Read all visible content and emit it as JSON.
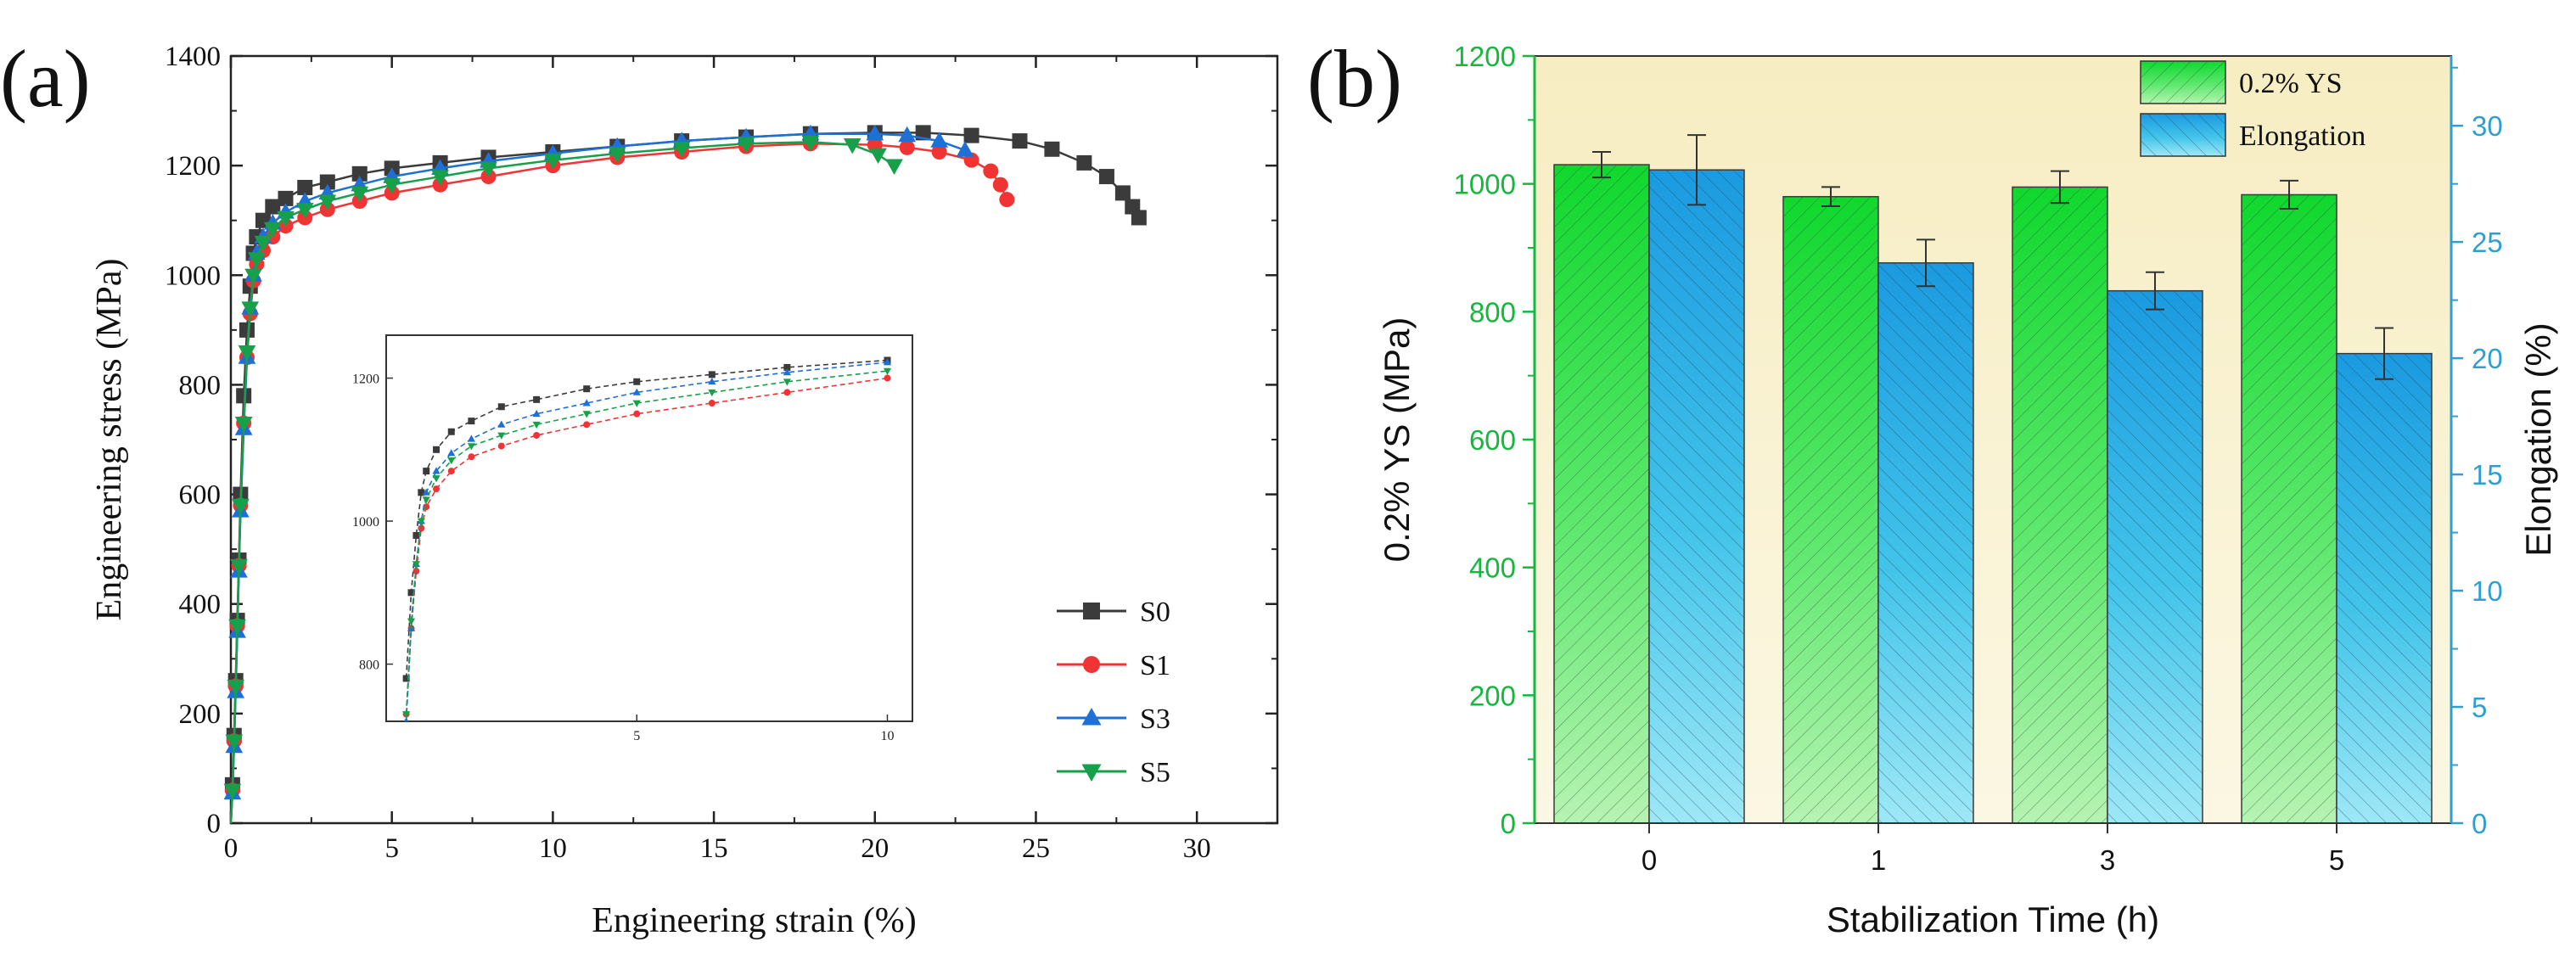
{
  "figure": {
    "panel_a_label": "(a)",
    "panel_b_label": "(b)"
  },
  "colors": {
    "S0": "#3b3b3b",
    "S1": "#f03434",
    "S3": "#1e6fd6",
    "S5": "#17a04a",
    "ys_axis": "#14b83c",
    "el_axis": "#2f9fd0",
    "background_b": "#f7efc6"
  },
  "chart_data": [
    {
      "id": "a",
      "type": "line",
      "title": "",
      "xlabel": "Engineering strain (%)",
      "ylabel": "Engineering stress (MPa)",
      "xlim": [
        0,
        32.5
      ],
      "ylim": [
        0,
        1400
      ],
      "xticks": [
        0,
        5,
        10,
        15,
        20,
        25,
        30
      ],
      "yticks": [
        0,
        200,
        400,
        600,
        800,
        1000,
        1200,
        1400
      ],
      "legend_position": "lower-right",
      "series": [
        {
          "name": "S0",
          "marker": "square",
          "color": "#3b3b3b",
          "x": [
            0,
            0.05,
            0.1,
            0.15,
            0.2,
            0.25,
            0.3,
            0.4,
            0.5,
            0.6,
            0.7,
            0.8,
            1.0,
            1.3,
            1.7,
            2.3,
            3.0,
            4.0,
            5.0,
            6.5,
            8.0,
            10.0,
            12.0,
            14.0,
            16.0,
            18.0,
            20.0,
            21.5,
            23.0,
            24.5,
            25.5,
            26.5,
            27.2,
            27.7,
            28.0,
            28.2
          ],
          "y": [
            0,
            70,
            160,
            260,
            370,
            480,
            600,
            780,
            900,
            980,
            1040,
            1070,
            1100,
            1125,
            1140,
            1160,
            1170,
            1185,
            1195,
            1205,
            1215,
            1225,
            1235,
            1245,
            1252,
            1258,
            1260,
            1260,
            1255,
            1245,
            1230,
            1205,
            1180,
            1150,
            1125,
            1105
          ]
        },
        {
          "name": "S1",
          "marker": "circle",
          "color": "#f03434",
          "x": [
            0,
            0.05,
            0.1,
            0.15,
            0.2,
            0.25,
            0.3,
            0.4,
            0.5,
            0.6,
            0.7,
            0.8,
            1.0,
            1.3,
            1.7,
            2.3,
            3.0,
            4.0,
            5.0,
            6.5,
            8.0,
            10.0,
            12.0,
            14.0,
            16.0,
            18.0,
            20.0,
            21.0,
            22.0,
            23.0,
            23.6,
            23.9,
            24.1
          ],
          "y": [
            0,
            60,
            150,
            250,
            360,
            470,
            580,
            730,
            850,
            930,
            990,
            1020,
            1045,
            1070,
            1090,
            1105,
            1120,
            1135,
            1150,
            1165,
            1180,
            1200,
            1215,
            1225,
            1235,
            1240,
            1238,
            1233,
            1225,
            1210,
            1190,
            1165,
            1138
          ]
        },
        {
          "name": "S3",
          "marker": "triangle-up",
          "color": "#1e6fd6",
          "x": [
            0,
            0.05,
            0.1,
            0.15,
            0.2,
            0.25,
            0.3,
            0.4,
            0.5,
            0.6,
            0.7,
            0.8,
            1.0,
            1.3,
            1.7,
            2.3,
            3.0,
            4.0,
            5.0,
            6.5,
            8.0,
            10.0,
            12.0,
            14.0,
            16.0,
            18.0,
            20.0,
            21.0,
            22.0,
            22.8
          ],
          "y": [
            0,
            55,
            140,
            240,
            350,
            460,
            570,
            720,
            850,
            940,
            1000,
            1040,
            1070,
            1095,
            1115,
            1135,
            1150,
            1165,
            1180,
            1195,
            1208,
            1222,
            1235,
            1245,
            1252,
            1258,
            1258,
            1255,
            1245,
            1228
          ]
        },
        {
          "name": "S5",
          "marker": "triangle-down",
          "color": "#17a04a",
          "x": [
            0,
            0.05,
            0.1,
            0.15,
            0.2,
            0.25,
            0.3,
            0.4,
            0.5,
            0.6,
            0.7,
            0.8,
            1.0,
            1.3,
            1.7,
            2.3,
            3.0,
            4.0,
            5.0,
            6.5,
            8.0,
            10.0,
            12.0,
            14.0,
            16.0,
            18.0,
            19.3,
            20.1,
            20.6
          ],
          "y": [
            0,
            60,
            150,
            250,
            360,
            470,
            580,
            730,
            860,
            940,
            1000,
            1030,
            1060,
            1085,
            1105,
            1120,
            1135,
            1150,
            1165,
            1180,
            1195,
            1210,
            1222,
            1232,
            1240,
            1243,
            1238,
            1220,
            1200
          ]
        }
      ],
      "inset": {
        "xlim": [
          0,
          10.5
        ],
        "ylim": [
          720,
          1260
        ],
        "xticks": [
          5,
          10
        ],
        "yticks": [
          800,
          1000,
          1200
        ],
        "xtick_labels": [
          "5",
          "10"
        ],
        "ytick_labels": [
          "800",
          "1000",
          "1200"
        ]
      },
      "legend": [
        "S0",
        "S1",
        "S3",
        "S5"
      ]
    },
    {
      "id": "b",
      "type": "bar",
      "title": "",
      "xlabel": "Stabilization Time (h)",
      "ylabel_left": "0.2% YS (MPa)",
      "ylabel_right": "Elongation (%)",
      "categories": [
        "0",
        "1",
        "3",
        "5"
      ],
      "ylim_left": [
        0,
        1200
      ],
      "ylim_right": [
        0,
        33
      ],
      "yticks_left": [
        0,
        200,
        400,
        600,
        800,
        1000,
        1200
      ],
      "yticks_right": [
        0,
        5,
        10,
        15,
        20,
        25,
        30
      ],
      "legend_position": "top-right",
      "series": [
        {
          "name": "0.2% YS",
          "axis": "left",
          "values": [
            1030,
            980,
            995,
            983
          ],
          "errors": [
            20,
            15,
            25,
            22
          ]
        },
        {
          "name": "Elongation",
          "axis": "right",
          "values": [
            28.1,
            24.1,
            22.9,
            20.2
          ],
          "errors": [
            1.5,
            1.0,
            0.8,
            1.1
          ]
        }
      ],
      "legend": [
        "0.2% YS",
        "Elongation"
      ]
    }
  ]
}
